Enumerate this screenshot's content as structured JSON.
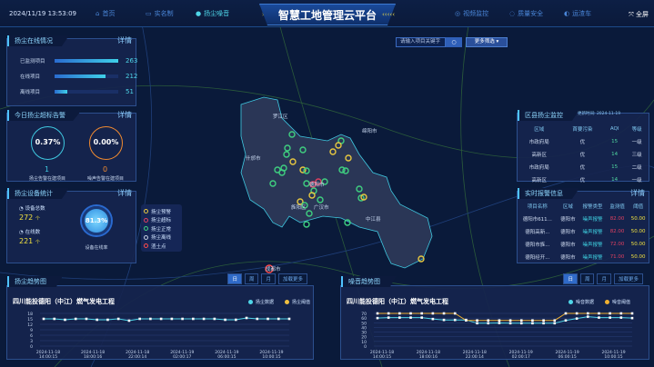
{
  "header": {
    "datetime": "2024/11/19 13:53:09",
    "title": "智慧工地管理云平台",
    "nav_left": [
      "首页",
      "实名制",
      "扬尘噪音"
    ],
    "nav_right": [
      "视频监控",
      "质量安全",
      "运渣车"
    ],
    "active": "扬尘噪音",
    "fullscreen": "全屏"
  },
  "search": {
    "placeholder": "请输入项目关键字",
    "more_filter": "更多筛选 ▾"
  },
  "online": {
    "title": "扬尘在线情况",
    "more": "详情",
    "rows": [
      {
        "label": "已监测项目",
        "value": "263",
        "pct": 100
      },
      {
        "label": "在线项目",
        "value": "212",
        "pct": 80.6
      },
      {
        "label": "离线项目",
        "value": "51",
        "pct": 19.4
      }
    ]
  },
  "alarm": {
    "title": "今日扬尘超标告警",
    "more": "详情",
    "dust_rate": "0.37%",
    "dust_count": "1",
    "dust_label": "扬尘告警在建项目",
    "noise_rate": "0.00%",
    "noise_count": "0",
    "noise_label": "噪声告警在建项目"
  },
  "device": {
    "title": "扬尘设备统计",
    "more": "详情",
    "total_label": "设备总数",
    "total": "272",
    "total_unit": "个",
    "online_label": "在线数",
    "online": "221",
    "online_unit": "个",
    "rate": "81.3%",
    "rate_label": "设备在线率"
  },
  "legend": [
    "扬尘预警",
    "扬尘超标",
    "扬尘正常",
    "扬尘离线",
    "渣土点"
  ],
  "legend_colors": [
    "#e8c840",
    "#e04060",
    "#3fd080",
    "#c8d0e0",
    "#ff4a4a"
  ],
  "map_labels": [
    "绵阳市",
    "德阳市",
    "中江县",
    "成都市",
    "罗江区",
    "什邡市",
    "广汉市",
    "旌阳区"
  ],
  "district": {
    "title": "区县扬尘监控",
    "update": "更新时间: 2024-11-19",
    "headers": [
      "区域",
      "首要污染",
      "AQI",
      "等级"
    ],
    "rows": [
      [
        "市政府局",
        "优",
        "15",
        "一级"
      ],
      [
        "高新区",
        "优",
        "14",
        "三级"
      ],
      [
        "市政府局",
        "优",
        "15",
        "二级"
      ],
      [
        "高新区",
        "优",
        "14",
        "一级"
      ]
    ]
  },
  "realtime": {
    "title": "实时报警信息",
    "more": "详情",
    "headers": [
      "项目名称",
      "区域",
      "报警类型",
      "监测值",
      "阈值"
    ],
    "rows": [
      [
        "德阳市611...",
        "德阳市",
        "噪声报警",
        "82.00",
        "50.00"
      ],
      [
        "德阳高新...",
        "德阳市",
        "噪声报警",
        "82.00",
        "50.00"
      ],
      [
        "德阳市旌...",
        "德阳市",
        "噪声报警",
        "72.00",
        "50.00"
      ],
      [
        "德阳经开...",
        "德阳市",
        "噪声报警",
        "71.00",
        "50.00"
      ]
    ]
  },
  "chart_tabs": [
    "日",
    "周",
    "月",
    "加载更多"
  ],
  "chart_data": [
    {
      "type": "line",
      "panel_title": "扬尘趋势图",
      "title": "四川能投德阳（中江）燃气发电工程",
      "ylim": [
        0,
        18
      ],
      "yticks": [
        0,
        3,
        6,
        9,
        12,
        15,
        18
      ],
      "xticks": [
        "2024-11-18\n14:00:15",
        "2024-11-18\n18:00:16",
        "2024-11-18\n22:00:14",
        "2024-11-19\n02:00:17",
        "2024-11-19\n06:00:15",
        "2024-11-19\n10:00:15"
      ],
      "series": [
        {
          "name": "扬尘数据",
          "color": "#4fd6e8",
          "values": [
            15,
            15,
            14.5,
            15,
            15,
            14.5,
            14.5,
            15,
            14,
            15,
            15,
            15,
            15,
            15,
            15,
            15,
            15,
            14.5,
            14.5,
            15.5,
            15,
            15,
            15,
            15
          ]
        },
        {
          "name": "扬尘阈值",
          "color": "#f0c040",
          "values": []
        }
      ]
    },
    {
      "type": "line",
      "panel_title": "噪音趋势图",
      "title": "四川能投德阳（中江）燃气发电工程",
      "ylim": [
        0,
        70
      ],
      "yticks": [
        0,
        10,
        20,
        30,
        40,
        50,
        60,
        70
      ],
      "xticks": [
        "2024-11-18\n14:00:15",
        "2024-11-18\n18:00:16",
        "2024-11-18\n22:00:14",
        "2024-11-19\n02:00:17",
        "2024-11-19\n06:00:15",
        "2024-11-19\n10:00:15"
      ],
      "series": [
        {
          "name": "噪音数据",
          "color": "#4fd6e8",
          "values": [
            60,
            61,
            61,
            61,
            61,
            58,
            56,
            56,
            56,
            49,
            49,
            49.5,
            49,
            49,
            49,
            49,
            49,
            55,
            59,
            63,
            61,
            61,
            61,
            60
          ]
        },
        {
          "name": "噪音阈值",
          "color": "#f0b030",
          "values": [
            70,
            70,
            70,
            70,
            70,
            70,
            70,
            70,
            55,
            55,
            55,
            55,
            55,
            55,
            55,
            55,
            55,
            70,
            70,
            70,
            70,
            70,
            70,
            70
          ]
        }
      ]
    }
  ]
}
